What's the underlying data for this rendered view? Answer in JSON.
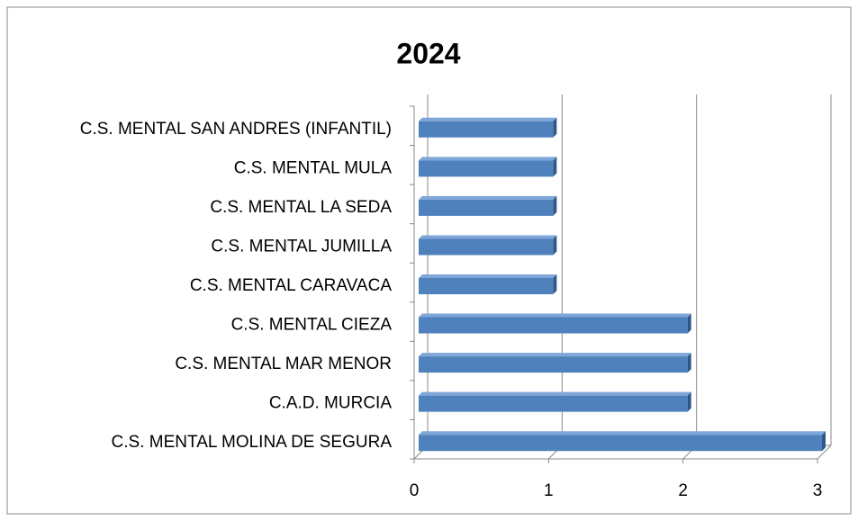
{
  "chart_data": {
    "type": "bar",
    "orientation": "horizontal",
    "title": "2024",
    "categories": [
      "C.S. MENTAL SAN ANDRES (INFANTIL)",
      "C.S. MENTAL MULA",
      "C.S. MENTAL LA SEDA",
      "C.S. MENTAL JUMILLA",
      "C.S. MENTAL CARAVACA",
      "C.S. MENTAL CIEZA",
      "C.S. MENTAL MAR MENOR",
      "C.A.D. MURCIA",
      "C.S. MENTAL MOLINA DE SEGURA"
    ],
    "values": [
      1,
      1,
      1,
      1,
      1,
      2,
      2,
      2,
      3
    ],
    "color": "#4f81bd",
    "xlim": [
      0,
      3
    ],
    "xticks": [
      0,
      1,
      2,
      3
    ],
    "grid": true
  }
}
